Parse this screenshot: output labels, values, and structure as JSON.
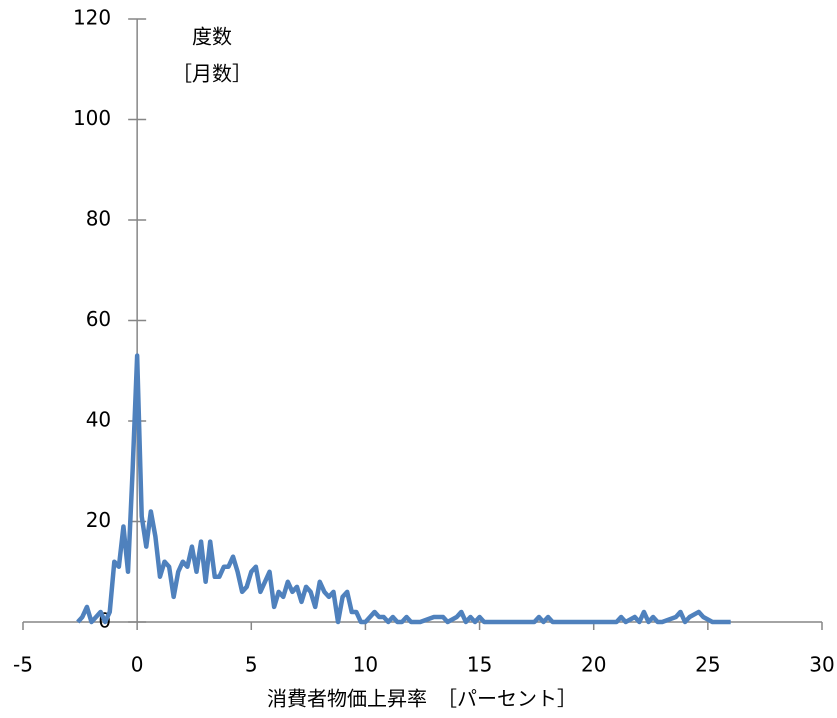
{
  "chart_data": {
    "type": "line",
    "y_label_line1": "度数",
    "y_label_line2": "［月数］",
    "x_label": "消費者物価上昇率　［パーセント］",
    "x": [
      -2.6,
      -2.4,
      -2.2,
      -2.0,
      -1.8,
      -1.6,
      -1.4,
      -1.2,
      -1.0,
      -0.8,
      -0.6,
      -0.4,
      -0.2,
      0,
      0.2,
      0.4,
      0.6,
      0.8,
      1.0,
      1.2,
      1.4,
      1.6,
      1.8,
      2.0,
      2.2,
      2.4,
      2.6,
      2.8,
      3.0,
      3.2,
      3.4,
      3.6,
      3.8,
      4.0,
      4.2,
      4.4,
      4.6,
      4.8,
      5.0,
      5.2,
      5.4,
      5.6,
      5.8,
      6.0,
      6.2,
      6.4,
      6.6,
      6.8,
      7.0,
      7.2,
      7.4,
      7.6,
      7.8,
      8.0,
      8.2,
      8.4,
      8.6,
      8.8,
      9.0,
      9.2,
      9.4,
      9.6,
      9.8,
      10.0,
      10.2,
      10.4,
      10.6,
      10.8,
      11.0,
      11.2,
      11.4,
      11.6,
      11.8,
      12.0,
      12.4,
      13.0,
      13.4,
      13.6,
      14.0,
      14.2,
      14.4,
      14.6,
      14.8,
      15.0,
      15.2,
      17.4,
      17.6,
      17.8,
      18.0,
      18.2,
      18.4,
      21.0,
      21.2,
      21.4,
      21.8,
      22.0,
      22.2,
      22.4,
      22.6,
      22.8,
      23.0,
      23.6,
      23.8,
      24.0,
      24.2,
      24.6,
      24.8,
      25.2,
      26.0
    ],
    "series": [
      {
        "name": "度数",
        "color": "#4f81bd",
        "values": [
          0,
          1,
          3,
          0,
          1,
          2,
          0,
          2,
          12,
          11,
          19,
          10,
          30,
          53,
          21,
          15,
          22,
          17,
          9,
          12,
          11,
          5,
          10,
          12,
          11,
          15,
          10,
          16,
          8,
          16,
          9,
          9,
          11,
          11,
          13,
          10,
          6,
          7,
          10,
          11,
          6,
          8,
          10,
          3,
          6,
          5,
          8,
          6,
          7,
          4,
          7,
          6,
          3,
          8,
          6,
          5,
          6,
          0,
          5,
          6,
          2,
          2,
          0,
          0,
          1,
          2,
          1,
          1,
          0,
          1,
          0,
          0,
          1,
          0,
          0,
          1,
          1,
          0,
          1,
          2,
          0,
          1,
          0,
          1,
          0,
          0,
          1,
          0,
          1,
          0,
          0,
          0,
          1,
          0,
          1,
          0,
          2,
          0,
          1,
          0,
          0,
          1,
          2,
          0,
          1,
          2,
          1,
          0,
          0
        ]
      }
    ],
    "xlim": [
      -5,
      30
    ],
    "xticks": [
      -5,
      0,
      5,
      10,
      15,
      20,
      25,
      30
    ],
    "ylim": [
      0,
      120
    ],
    "yticks": [
      0,
      20,
      40,
      60,
      80,
      100,
      120
    ]
  }
}
